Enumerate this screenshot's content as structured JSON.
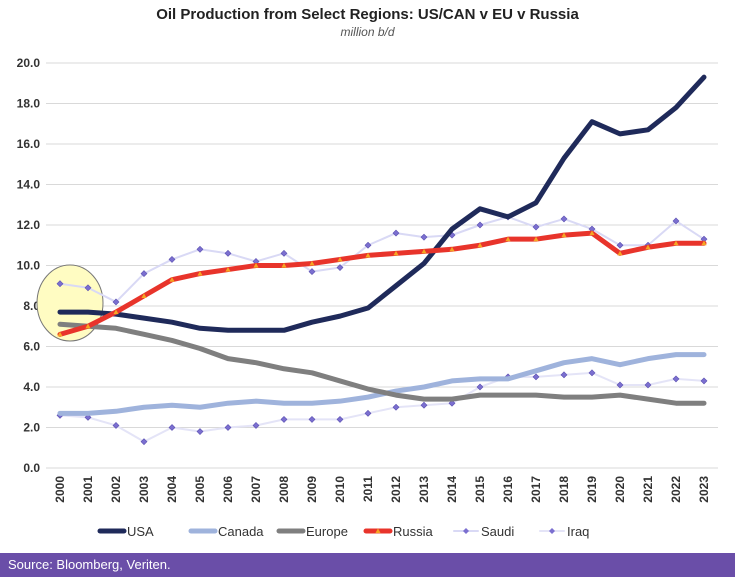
{
  "chart_data": {
    "type": "line",
    "title": "Oil Production from Select Regions: US/CAN v EU v Russia",
    "subtitle": "million b/d",
    "ylim": [
      0,
      20
    ],
    "yticks": [
      "0.0",
      "2.0",
      "4.0",
      "6.0",
      "8.0",
      "10.0",
      "12.0",
      "14.0",
      "16.0",
      "18.0",
      "20.0"
    ],
    "ytick_values": [
      0,
      2,
      4,
      6,
      8,
      10,
      12,
      14,
      16,
      18,
      20
    ],
    "categories": [
      "2000",
      "2001",
      "2002",
      "2003",
      "2004",
      "2005",
      "2006",
      "2007",
      "2008",
      "2009",
      "2010",
      "2011",
      "2012",
      "2013",
      "2014",
      "2015",
      "2016",
      "2017",
      "2018",
      "2019",
      "2020",
      "2021",
      "2022",
      "2023"
    ],
    "grid": true,
    "legend_position": "bottom",
    "series": [
      {
        "name": "USA",
        "color": "#1f2a5a",
        "style": "thick",
        "values": [
          7.7,
          7.7,
          7.6,
          7.4,
          7.2,
          6.9,
          6.8,
          6.8,
          6.8,
          7.2,
          7.5,
          7.9,
          9.0,
          10.1,
          11.8,
          12.8,
          12.4,
          13.1,
          15.3,
          17.1,
          16.5,
          16.7,
          17.8,
          19.3
        ]
      },
      {
        "name": "Canada",
        "color": "#9fb3dc",
        "style": "thick",
        "values": [
          2.7,
          2.7,
          2.8,
          3.0,
          3.1,
          3.0,
          3.2,
          3.3,
          3.2,
          3.2,
          3.3,
          3.5,
          3.8,
          4.0,
          4.3,
          4.4,
          4.4,
          4.8,
          5.2,
          5.4,
          5.1,
          5.4,
          5.6,
          5.6
        ]
      },
      {
        "name": "Europe",
        "color": "#7f7f7f",
        "style": "thick",
        "values": [
          7.1,
          7.0,
          6.9,
          6.6,
          6.3,
          5.9,
          5.4,
          5.2,
          4.9,
          4.7,
          4.3,
          3.9,
          3.6,
          3.4,
          3.4,
          3.6,
          3.6,
          3.6,
          3.5,
          3.5,
          3.6,
          3.4,
          3.2,
          3.2
        ]
      },
      {
        "name": "Russia",
        "color": "#e8342b",
        "style": "thick-marker",
        "values": [
          6.6,
          7.0,
          7.7,
          8.5,
          9.3,
          9.6,
          9.8,
          10.0,
          10.0,
          10.1,
          10.3,
          10.5,
          10.6,
          10.7,
          10.8,
          11.0,
          11.3,
          11.3,
          11.5,
          11.6,
          10.6,
          10.9,
          11.1,
          11.1
        ]
      },
      {
        "name": "Saudi",
        "color": "#d9d9f5",
        "style": "thin-diamond",
        "values": [
          9.1,
          8.9,
          8.2,
          9.6,
          10.3,
          10.8,
          10.6,
          10.2,
          10.6,
          9.7,
          9.9,
          11.0,
          11.6,
          11.4,
          11.5,
          12.0,
          12.4,
          11.9,
          12.3,
          11.8,
          11.0,
          11.0,
          12.2,
          11.3
        ]
      },
      {
        "name": "Iraq",
        "color": "#e4e4f7",
        "style": "thin-diamond",
        "values": [
          2.6,
          2.5,
          2.1,
          1.3,
          2.0,
          1.8,
          2.0,
          2.1,
          2.4,
          2.4,
          2.4,
          2.7,
          3.0,
          3.1,
          3.2,
          4.0,
          4.5,
          4.5,
          4.6,
          4.7,
          4.1,
          4.1,
          4.4,
          4.3
        ]
      }
    ],
    "annotations": [
      {
        "type": "ellipse",
        "description": "highlight of year 2000 starting values",
        "fill": "#fffcc2",
        "stroke": "#777"
      }
    ]
  },
  "footer": {
    "source": "Source: Bloomberg, Veriten.",
    "bar_color": "#6a4ea8"
  }
}
